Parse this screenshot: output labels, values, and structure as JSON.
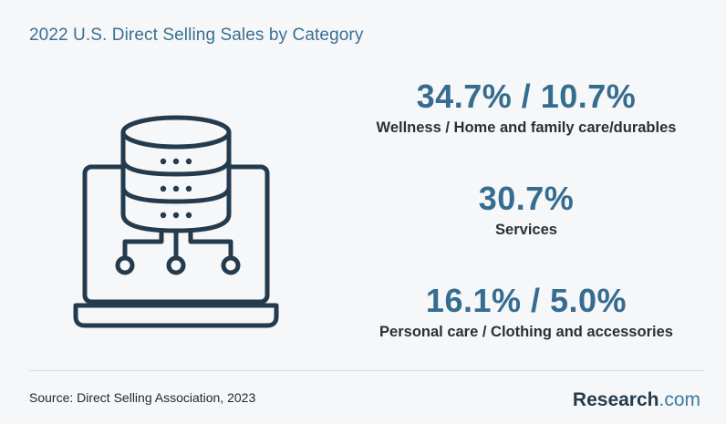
{
  "title": "2022 U.S. Direct Selling Sales by Category",
  "stats": [
    {
      "value": "34.7% / 10.7%",
      "label": "Wellness / Home and family care/durables"
    },
    {
      "value": "30.7%",
      "label": "Services"
    },
    {
      "value": "16.1% / 5.0%",
      "label": "Personal care / Clothing and accessories"
    }
  ],
  "source": "Source: Direct Selling Association, 2023",
  "brand": {
    "name": "Research",
    "suffix": ".com"
  },
  "illustration": {
    "icon": "laptop-database-icon"
  },
  "colors": {
    "accent": "#356c90",
    "dark": "#243b4e",
    "background": "#f6f7f9"
  }
}
